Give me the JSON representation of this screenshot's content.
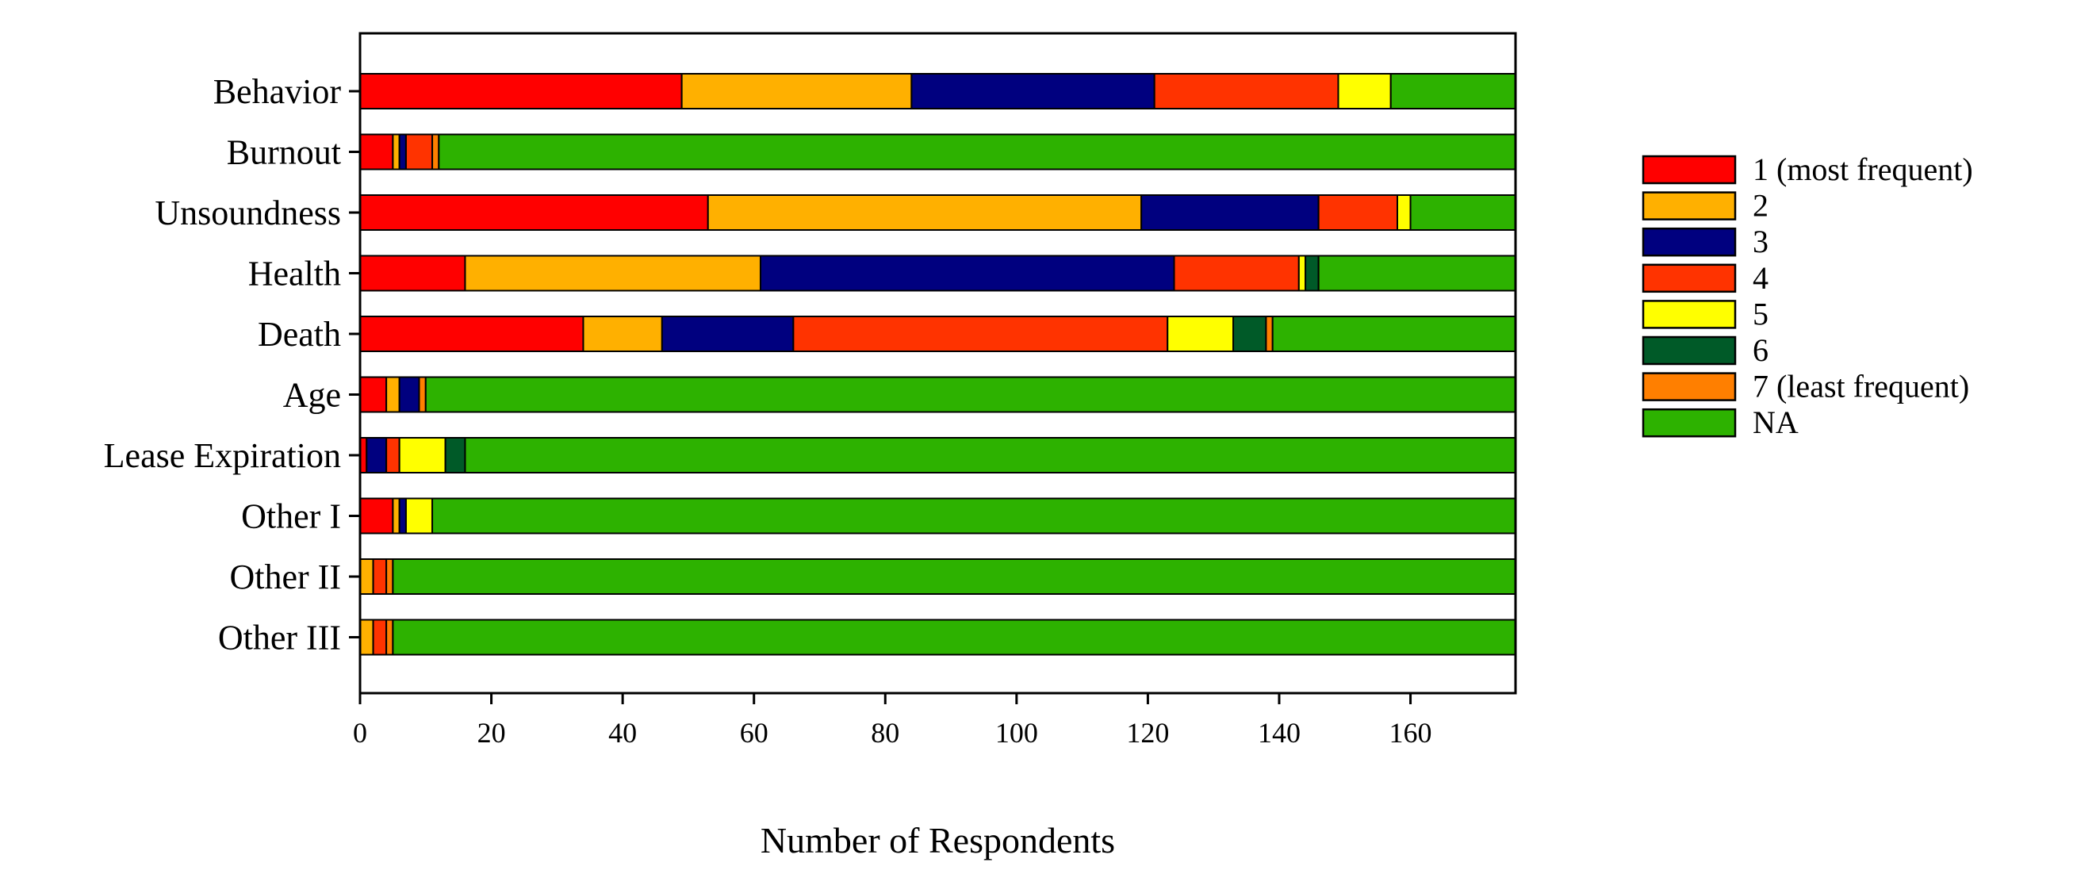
{
  "chart_data": {
    "type": "bar",
    "orientation": "horizontal",
    "stacked": true,
    "title": "",
    "xlabel": "Number of Respondents",
    "ylabel": "",
    "xlim": [
      0,
      176
    ],
    "xticks": [
      0,
      20,
      40,
      60,
      80,
      100,
      120,
      140,
      160
    ],
    "grid": false,
    "legend_position": "right",
    "categories": [
      "Behavior",
      "Burnout",
      "Unsoundness",
      "Health",
      "Death",
      "Age",
      "Lease Expiration",
      "Other I",
      "Other II",
      "Other III"
    ],
    "series": [
      {
        "name": "1 (most frequent)",
        "color": "#ff0000",
        "values": [
          49,
          5,
          53,
          16,
          34,
          4,
          1,
          5,
          0,
          0
        ]
      },
      {
        "name": "2",
        "color": "#ffb000",
        "values": [
          35,
          1,
          66,
          45,
          12,
          2,
          0,
          1,
          2,
          2
        ]
      },
      {
        "name": "3",
        "color": "#00007f",
        "values": [
          37,
          1,
          27,
          63,
          20,
          3,
          3,
          1,
          0,
          0
        ]
      },
      {
        "name": "4",
        "color": "#ff3300",
        "values": [
          28,
          4,
          12,
          19,
          57,
          0,
          2,
          0,
          2,
          2
        ]
      },
      {
        "name": "5",
        "color": "#ffff00",
        "values": [
          8,
          0,
          2,
          1,
          10,
          0,
          7,
          4,
          0,
          0
        ]
      },
      {
        "name": "6",
        "color": "#005a28",
        "values": [
          0,
          0,
          0,
          2,
          5,
          0,
          3,
          0,
          0,
          0
        ]
      },
      {
        "name": "7 (least frequent)",
        "color": "#ff7f00",
        "values": [
          0,
          1,
          0,
          0,
          1,
          1,
          0,
          0,
          1,
          1
        ]
      },
      {
        "name": "NA",
        "color": "#2db200",
        "values": [
          19,
          164,
          16,
          30,
          37,
          166,
          160,
          165,
          171,
          171
        ]
      }
    ]
  }
}
